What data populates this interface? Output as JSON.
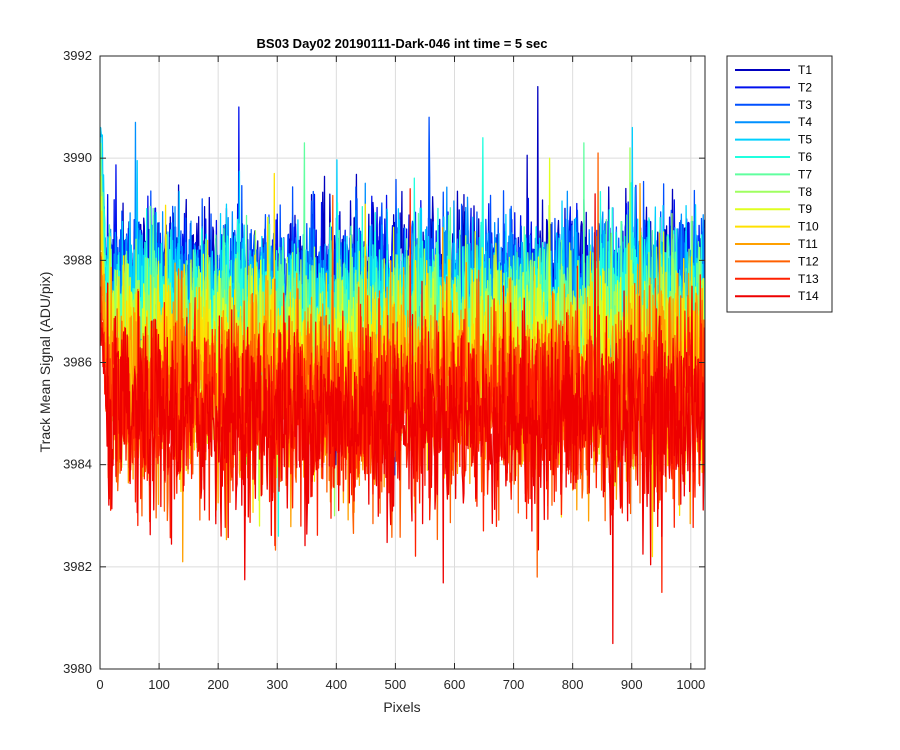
{
  "chart_data": {
    "type": "line",
    "title": "BS03 Day02 20190111-Dark-046 int time = 5 sec",
    "xlabel": "Pixels",
    "ylabel": "Track Mean Signal (ADU/pix)",
    "xlim": [
      0,
      1024
    ],
    "ylim": [
      3980,
      3992
    ],
    "xticks": [
      0,
      100,
      200,
      300,
      400,
      500,
      600,
      700,
      800,
      900,
      1000
    ],
    "yticks": [
      3980,
      3982,
      3984,
      3986,
      3988,
      3990,
      3992
    ],
    "grid": true,
    "legend_position": "outside-top-right",
    "series": [
      {
        "name": "T1",
        "color": "#0000bf",
        "mean": 3987.6,
        "spread": 0.75,
        "min": 3984.0,
        "max": 3991.4,
        "start": 3989.4
      },
      {
        "name": "T2",
        "color": "#0010ee",
        "mean": 3987.5,
        "spread": 0.75,
        "min": 3983.9,
        "max": 3991.0,
        "start": 3989.6
      },
      {
        "name": "T3",
        "color": "#0050ff",
        "mean": 3987.4,
        "spread": 0.75,
        "min": 3983.8,
        "max": 3990.8,
        "start": 3989.9
      },
      {
        "name": "T4",
        "color": "#0090ff",
        "mean": 3987.3,
        "spread": 0.78,
        "min": 3983.8,
        "max": 3990.7,
        "start": 3990.2
      },
      {
        "name": "T5",
        "color": "#00d0ff",
        "mean": 3987.1,
        "spread": 0.8,
        "min": 3983.5,
        "max": 3990.6,
        "start": 3991.4
      },
      {
        "name": "T6",
        "color": "#20ffdf",
        "mean": 3986.9,
        "spread": 0.82,
        "min": 3982.6,
        "max": 3990.4,
        "start": 3990.8
      },
      {
        "name": "T7",
        "color": "#60ff9f",
        "mean": 3986.7,
        "spread": 0.85,
        "min": 3983.3,
        "max": 3990.3,
        "start": 3990.4
      },
      {
        "name": "T8",
        "color": "#9fff60",
        "mean": 3986.4,
        "spread": 0.88,
        "min": 3983.0,
        "max": 3990.2,
        "start": 3989.9
      },
      {
        "name": "T9",
        "color": "#dfff20",
        "mean": 3986.1,
        "spread": 0.9,
        "min": 3982.8,
        "max": 3990.0,
        "start": 3989.4
      },
      {
        "name": "T10",
        "color": "#ffe000",
        "mean": 3985.8,
        "spread": 0.92,
        "min": 3982.2,
        "max": 3989.7,
        "start": 3989.0
      },
      {
        "name": "T11",
        "color": "#ffa000",
        "mean": 3985.5,
        "spread": 0.95,
        "min": 3982.1,
        "max": 3989.5,
        "start": 3988.6
      },
      {
        "name": "T12",
        "color": "#ff6000",
        "mean": 3985.2,
        "spread": 0.95,
        "min": 3981.8,
        "max": 3990.1,
        "start": 3988.2
      },
      {
        "name": "T13",
        "color": "#ff2000",
        "mean": 3985.0,
        "spread": 0.95,
        "min": 3981.5,
        "max": 3989.4,
        "start": 3987.6
      },
      {
        "name": "T14",
        "color": "#ee0000",
        "mean": 3984.9,
        "spread": 0.95,
        "min": 3980.5,
        "max": 3989.3,
        "start": 3987.0
      }
    ]
  }
}
